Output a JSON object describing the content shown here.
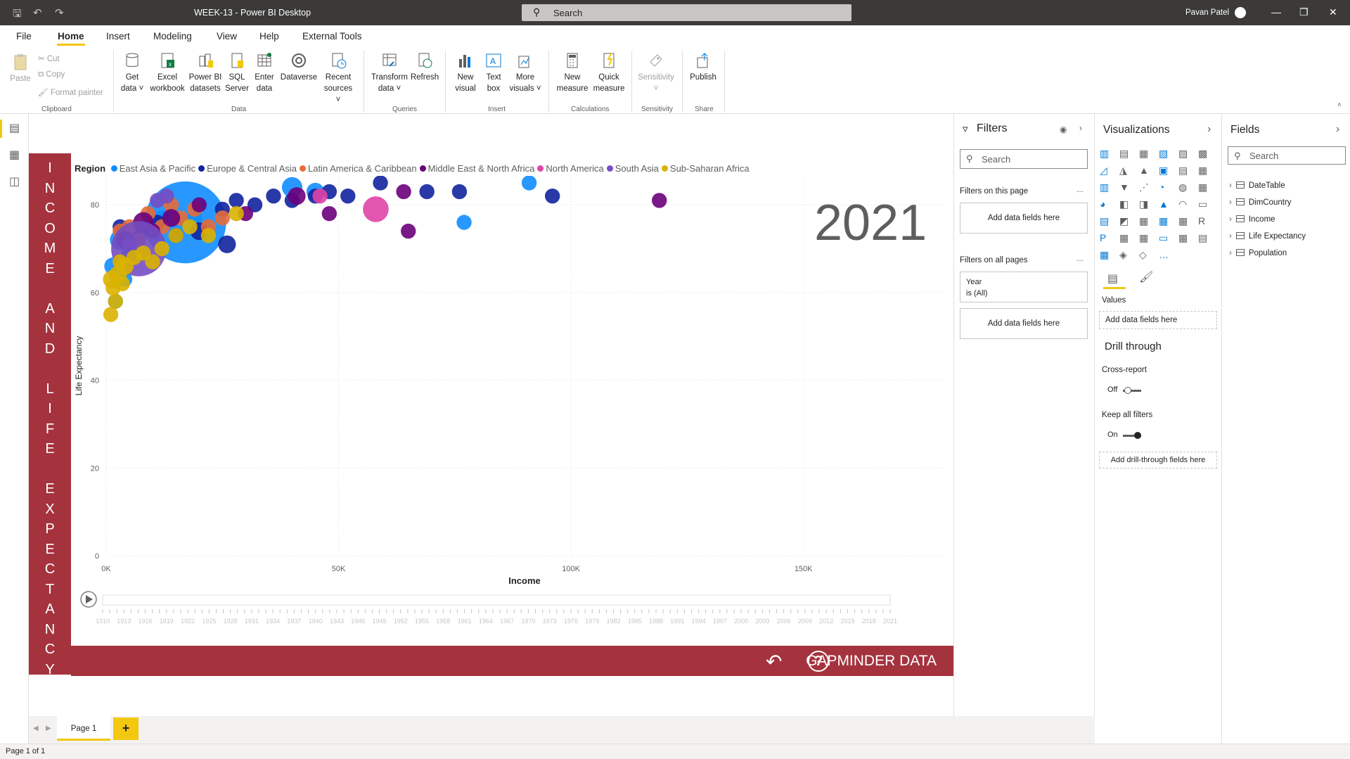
{
  "window": {
    "title": "WEEK-13 - Power BI Desktop",
    "search_placeholder": "Search",
    "user_name": "Pavan Patel"
  },
  "menu": {
    "items": [
      "File",
      "Home",
      "Insert",
      "Modeling",
      "View",
      "Help",
      "External Tools"
    ],
    "active": "Home"
  },
  "ribbon": {
    "clipboard": {
      "paste": "Paste",
      "cut": "Cut",
      "copy": "Copy",
      "format_painter": "Format painter",
      "group": "Clipboard"
    },
    "data": {
      "get_data_1": "Get",
      "get_data_2": "data",
      "excel_1": "Excel",
      "excel_2": "workbook",
      "pbi_1": "Power BI",
      "pbi_2": "datasets",
      "sql_1": "SQL",
      "sql_2": "Server",
      "enter_1": "Enter",
      "enter_2": "data",
      "dataverse": "Dataverse",
      "recent_1": "Recent",
      "recent_2": "sources",
      "group": "Data"
    },
    "queries": {
      "transform_1": "Transform",
      "transform_2": "data",
      "refresh": "Refresh",
      "group": "Queries"
    },
    "insert": {
      "new_visual_1": "New",
      "new_visual_2": "visual",
      "text_box_1": "Text",
      "text_box_2": "box",
      "more_visuals_1": "More",
      "more_visuals_2": "visuals",
      "group": "Insert"
    },
    "calculations": {
      "new_measure_1": "New",
      "new_measure_2": "measure",
      "quick_measure_1": "Quick",
      "quick_measure_2": "measure",
      "group": "Calculations"
    },
    "sensitivity": {
      "label": "Sensitivity",
      "group": "Sensitivity"
    },
    "share": {
      "publish": "Publish",
      "group": "Share"
    }
  },
  "report": {
    "side_banner_letters": [
      "I",
      "N",
      "C",
      "O",
      "M",
      "E",
      "",
      "A",
      "N",
      "D",
      "",
      "L",
      "I",
      "F",
      "E",
      "",
      "E",
      "X",
      "P",
      "E",
      "C",
      "T",
      "A",
      "N",
      "C",
      "Y"
    ],
    "year_display": "2021",
    "footer_label": "GAPMINDER DATA",
    "undo_icon": "undo-arrow-icon",
    "help_icon": "question-circle-icon",
    "help_glyph": "?",
    "play_icon": "play-icon"
  },
  "chart_data": {
    "type": "scatter",
    "title": "",
    "legend_title": "Region",
    "xlabel": "Income",
    "ylabel": "Life Expectancy",
    "xlim": [
      0,
      180000
    ],
    "ylim": [
      0,
      85
    ],
    "x_ticks": [
      "0K",
      "50K",
      "100K",
      "150K"
    ],
    "y_ticks": [
      "0",
      "20",
      "40",
      "60",
      "80"
    ],
    "grid": true,
    "legend_position": "top",
    "series": [
      {
        "name": "East Asia & Pacific",
        "color": "#118dff",
        "points": [
          [
            1500,
            66
          ],
          [
            3000,
            72
          ],
          [
            5000,
            69
          ],
          [
            8000,
            74
          ],
          [
            12000,
            77
          ],
          [
            17000,
            76
          ],
          [
            19000,
            77
          ],
          [
            40000,
            84
          ],
          [
            45000,
            83
          ],
          [
            91000,
            85
          ],
          [
            77000,
            76
          ],
          [
            4000,
            63
          ],
          [
            2000,
            58
          ]
        ],
        "sizes": [
          4,
          5,
          3,
          4,
          3,
          28,
          3,
          5,
          4,
          3,
          3,
          3,
          3
        ]
      },
      {
        "name": "Europe & Central Asia",
        "color": "#12239e",
        "points": [
          [
            3000,
            75
          ],
          [
            7000,
            73
          ],
          [
            11000,
            76
          ],
          [
            15000,
            73
          ],
          [
            20000,
            74
          ],
          [
            25000,
            79
          ],
          [
            28000,
            81
          ],
          [
            32000,
            80
          ],
          [
            36000,
            82
          ],
          [
            40000,
            81
          ],
          [
            45000,
            82
          ],
          [
            48000,
            83
          ],
          [
            52000,
            82
          ],
          [
            59000,
            85
          ],
          [
            69000,
            83
          ],
          [
            76000,
            83
          ],
          [
            96000,
            82
          ],
          [
            26000,
            71
          ]
        ],
        "sizes": [
          3,
          3,
          3,
          3,
          4,
          3,
          3,
          3,
          3,
          3,
          3,
          3,
          3,
          3,
          3,
          3,
          3,
          4
        ]
      },
      {
        "name": "Latin America & Caribbean",
        "color": "#e66c37",
        "points": [
          [
            3000,
            74
          ],
          [
            5000,
            75
          ],
          [
            7000,
            72
          ],
          [
            9000,
            78
          ],
          [
            12000,
            75
          ],
          [
            14000,
            80
          ],
          [
            16000,
            77
          ],
          [
            19000,
            79
          ],
          [
            22000,
            75
          ],
          [
            25000,
            77
          ]
        ],
        "sizes": [
          3,
          3,
          3,
          3,
          3,
          3,
          3,
          3,
          3,
          3
        ]
      },
      {
        "name": "Middle East & North Africa",
        "color": "#6b007b",
        "points": [
          [
            4000,
            72
          ],
          [
            8000,
            76
          ],
          [
            10000,
            74
          ],
          [
            14000,
            77
          ],
          [
            20000,
            80
          ],
          [
            30000,
            78
          ],
          [
            41000,
            82
          ],
          [
            48000,
            78
          ],
          [
            64000,
            83
          ],
          [
            65000,
            74
          ],
          [
            119000,
            81
          ]
        ],
        "sizes": [
          4,
          5,
          3,
          4,
          3,
          3,
          4,
          3,
          3,
          3,
          3
        ]
      },
      {
        "name": "North America",
        "color": "#e044a7",
        "points": [
          [
            58000,
            79
          ],
          [
            46000,
            82
          ]
        ],
        "sizes": [
          7,
          3
        ]
      },
      {
        "name": "South Asia",
        "color": "#744ec2",
        "points": [
          [
            7000,
            70
          ],
          [
            11000,
            81
          ],
          [
            5000,
            71
          ],
          [
            13000,
            82
          ]
        ],
        "sizes": [
          18,
          3,
          3,
          3
        ]
      },
      {
        "name": "Sub-Saharan Africa",
        "color": "#d9b300",
        "points": [
          [
            1000,
            55
          ],
          [
            2000,
            58
          ],
          [
            1500,
            61
          ],
          [
            2500,
            64
          ],
          [
            3000,
            67
          ],
          [
            4000,
            66
          ],
          [
            6000,
            68
          ],
          [
            8000,
            69
          ],
          [
            10000,
            67
          ],
          [
            12000,
            70
          ],
          [
            15000,
            73
          ],
          [
            18000,
            75
          ],
          [
            22000,
            73
          ],
          [
            28000,
            78
          ],
          [
            1200,
            63
          ],
          [
            3500,
            62
          ]
        ],
        "sizes": [
          3,
          3,
          3,
          4,
          3,
          4,
          3,
          3,
          3,
          3,
          3,
          3,
          3,
          3,
          4,
          3
        ]
      }
    ]
  },
  "play_axis": {
    "years": [
      "1910",
      "1913",
      "1916",
      "1919",
      "1922",
      "1925",
      "1928",
      "1931",
      "1934",
      "1937",
      "1940",
      "1943",
      "1946",
      "1949",
      "1952",
      "1955",
      "1958",
      "1961",
      "1964",
      "1967",
      "1970",
      "1973",
      "1976",
      "1979",
      "1982",
      "1985",
      "1988",
      "1991",
      "1994",
      "1997",
      "2000",
      "2003",
      "2006",
      "2009",
      "2012",
      "2015",
      "2018",
      "2021"
    ]
  },
  "filters_pane": {
    "title": "Filters",
    "search_placeholder": "Search",
    "on_this_page": "Filters on this page",
    "add_fields": "Add data fields here",
    "on_all_pages": "Filters on all pages",
    "year_filter_name": "Year",
    "year_filter_value": "is (All)",
    "add_fields_2": "Add data fields here",
    "dots": "...",
    "dots_2": "..."
  },
  "viz_pane": {
    "title": "Visualizations",
    "values_label": "Values",
    "values_well": "Add data fields here",
    "drill_title": "Drill through",
    "cross_report": "Cross-report",
    "cross_report_state": "Off",
    "keep_filters": "Keep all filters",
    "keep_filters_state": "On",
    "drill_well": "Add drill-through fields here",
    "more_dots": "..."
  },
  "fields_pane": {
    "title": "Fields",
    "search_placeholder": "Search",
    "tables": [
      "DateTable",
      "DimCountry",
      "Income",
      "Life Expectancy",
      "Population"
    ]
  },
  "page_tabs": {
    "tabs": [
      "Page 1"
    ],
    "add": "+"
  },
  "status": {
    "text": "Page 1 of 1"
  },
  "colors": {
    "accent": "#f2c811",
    "banner": "#a4333e",
    "titlebar": "#3b3a39"
  }
}
